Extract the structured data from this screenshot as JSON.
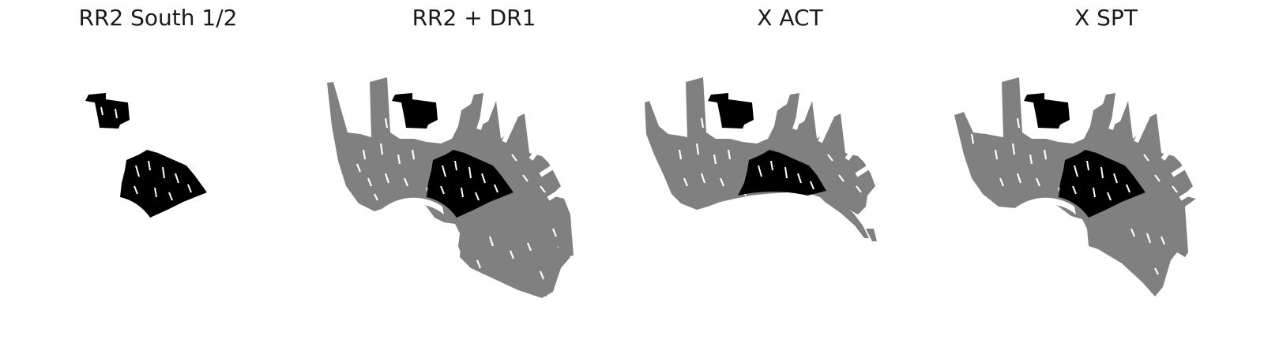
{
  "panels": [
    {
      "title": "RR2 South 1/2",
      "show_footprint": false
    },
    {
      "title": "RR2 + DR1",
      "show_footprint": true
    },
    {
      "title": "X ACT",
      "show_footprint": true
    },
    {
      "title": "X SPT",
      "show_footprint": true
    }
  ],
  "colors": {
    "footprint": "#808080",
    "overlap": "#000000",
    "background": "#ffffff"
  }
}
